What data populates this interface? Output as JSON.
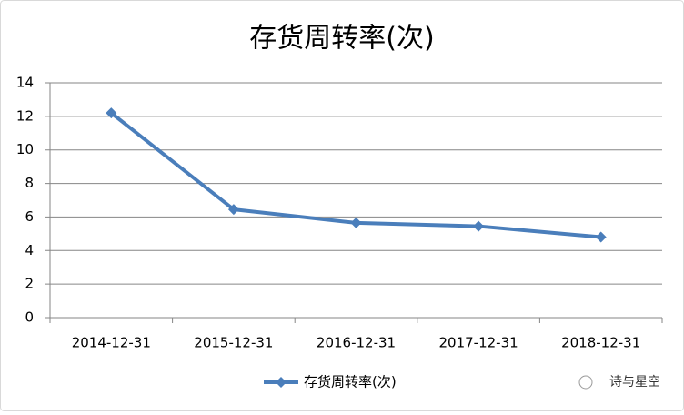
{
  "chart_data": {
    "type": "line",
    "title": "存货周转率(次)",
    "categories": [
      "2014-12-31",
      "2015-12-31",
      "2016-12-31",
      "2017-12-31",
      "2018-12-31"
    ],
    "series": [
      {
        "name": "存货周转率(次)",
        "color": "#4a7ebb",
        "values": [
          12.2,
          6.45,
          5.65,
          5.45,
          4.8
        ]
      }
    ],
    "ylim": [
      0,
      14
    ],
    "yticks": [
      0,
      2,
      4,
      6,
      8,
      10,
      12,
      14
    ],
    "grid": true,
    "legend": "bottom"
  },
  "watermark": "诗与星空"
}
